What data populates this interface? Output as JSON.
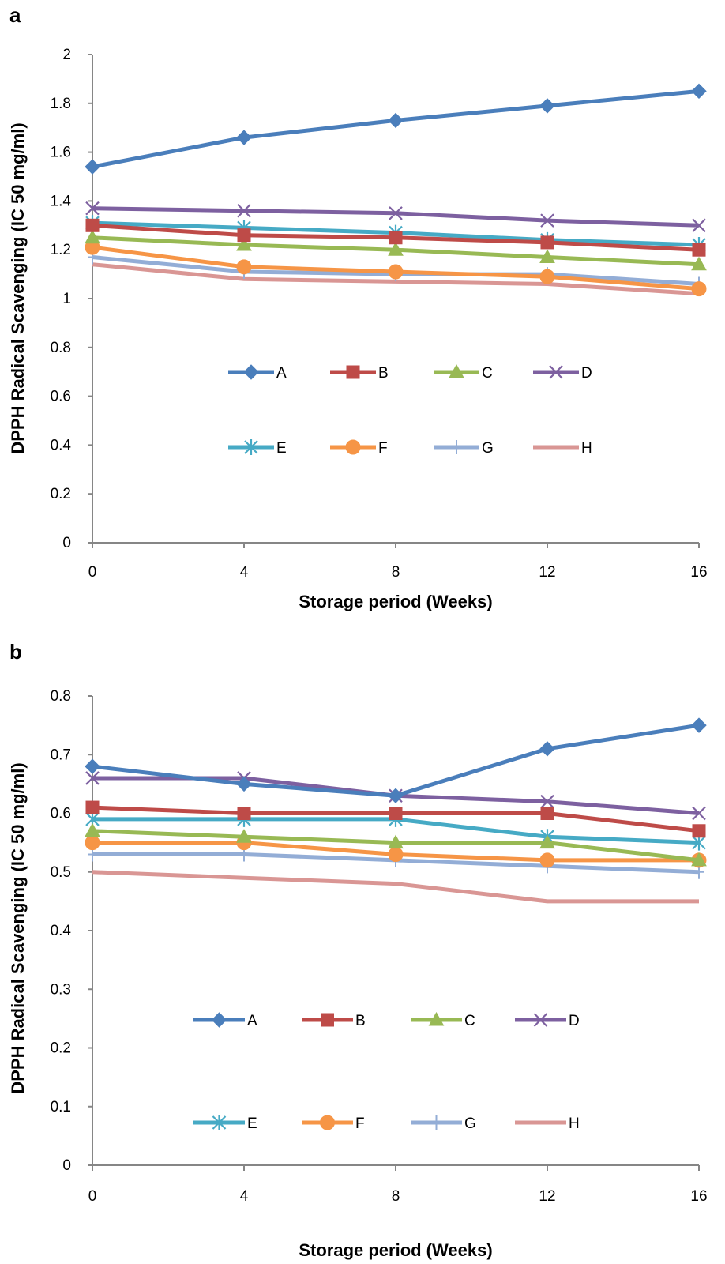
{
  "chart_data": [
    {
      "panel": "a",
      "type": "line",
      "xlabel": "Storage period (Weeks)",
      "ylabel": "DPPH Radical Scavenging (IC 50 mg/ml)",
      "x": [
        0,
        4,
        8,
        12,
        16
      ],
      "x_ticks": [
        "0",
        "4",
        "8",
        "12",
        "16"
      ],
      "ylim": [
        0,
        2
      ],
      "y_ticks": [
        "0",
        "0.2",
        "0.4",
        "0.6",
        "0.8",
        "1",
        "1.2",
        "1.4",
        "1.6",
        "1.8",
        "2"
      ],
      "grid": false,
      "legend_position": "center",
      "series": [
        {
          "name": "A",
          "values": [
            1.54,
            1.66,
            1.73,
            1.79,
            1.85
          ]
        },
        {
          "name": "B",
          "values": [
            1.3,
            1.26,
            1.25,
            1.23,
            1.2
          ]
        },
        {
          "name": "C",
          "values": [
            1.25,
            1.22,
            1.2,
            1.17,
            1.14
          ]
        },
        {
          "name": "D",
          "values": [
            1.37,
            1.36,
            1.35,
            1.32,
            1.3
          ]
        },
        {
          "name": "E",
          "values": [
            1.31,
            1.29,
            1.27,
            1.24,
            1.22
          ]
        },
        {
          "name": "F",
          "values": [
            1.21,
            1.13,
            1.11,
            1.09,
            1.04
          ]
        },
        {
          "name": "G",
          "values": [
            1.17,
            1.11,
            1.1,
            1.1,
            1.06
          ]
        },
        {
          "name": "H",
          "values": [
            1.14,
            1.08,
            1.07,
            1.06,
            1.02
          ]
        }
      ]
    },
    {
      "panel": "b",
      "type": "line",
      "xlabel": "Storage period (Weeks)",
      "ylabel": "DPPH Radical Scavenging (IC 50 mg/ml)",
      "x": [
        0,
        4,
        8,
        12,
        16
      ],
      "x_ticks": [
        "0",
        "4",
        "8",
        "12",
        "16"
      ],
      "ylim": [
        0,
        0.8
      ],
      "y_ticks": [
        "0",
        "0.1",
        "0.2",
        "0.3",
        "0.4",
        "0.5",
        "0.6",
        "0.7",
        "0.8"
      ],
      "grid": false,
      "legend_position": "bottom",
      "series": [
        {
          "name": "A",
          "values": [
            0.68,
            0.65,
            0.63,
            0.71,
            0.75
          ]
        },
        {
          "name": "B",
          "values": [
            0.61,
            0.6,
            0.6,
            0.6,
            0.57
          ]
        },
        {
          "name": "C",
          "values": [
            0.57,
            0.56,
            0.55,
            0.55,
            0.52
          ]
        },
        {
          "name": "D",
          "values": [
            0.66,
            0.66,
            0.63,
            0.62,
            0.6
          ]
        },
        {
          "name": "E",
          "values": [
            0.59,
            0.59,
            0.59,
            0.56,
            0.55
          ]
        },
        {
          "name": "F",
          "values": [
            0.55,
            0.55,
            0.53,
            0.52,
            0.52
          ]
        },
        {
          "name": "G",
          "values": [
            0.53,
            0.53,
            0.52,
            0.51,
            0.5
          ]
        },
        {
          "name": "H",
          "values": [
            0.5,
            0.49,
            0.48,
            0.45,
            0.45
          ]
        }
      ]
    }
  ],
  "styles": {
    "A": {
      "color": "#4a7ebb",
      "marker": "diamond-icon"
    },
    "B": {
      "color": "#be4b48",
      "marker": "square-icon"
    },
    "C": {
      "color": "#98b954",
      "marker": "triangle-icon"
    },
    "D": {
      "color": "#7d60a0",
      "marker": "x-icon"
    },
    "E": {
      "color": "#46aac5",
      "marker": "asterisk-icon"
    },
    "F": {
      "color": "#f69546",
      "marker": "circle-icon"
    },
    "G": {
      "color": "#93add6",
      "marker": "plus-icon"
    },
    "H": {
      "color": "#d99694",
      "marker": "none"
    }
  }
}
